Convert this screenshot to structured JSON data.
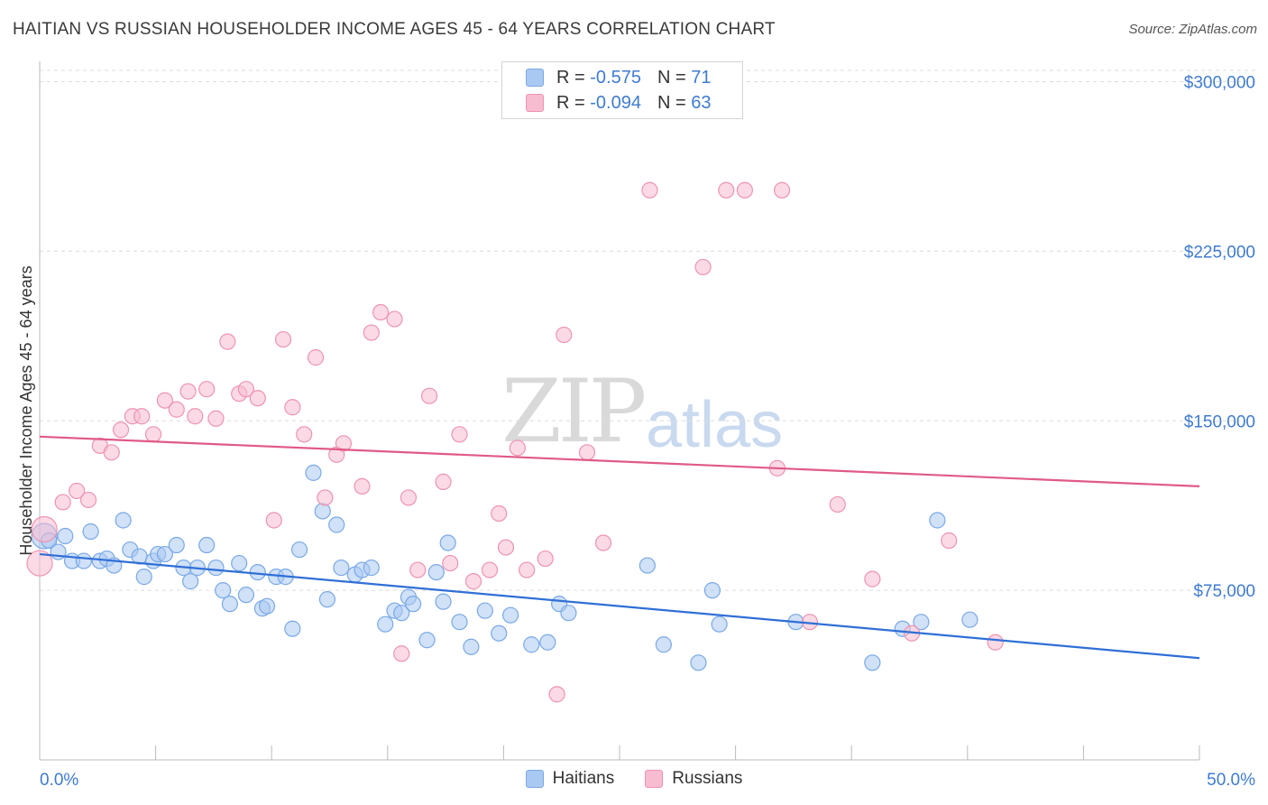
{
  "title": "HAITIAN VS RUSSIAN HOUSEHOLDER INCOME AGES 45 - 64 YEARS CORRELATION CHART",
  "source": "Source: ZipAtlas.com",
  "watermark": {
    "zip": "ZIP",
    "atlas": "atlas"
  },
  "legend_top": [
    {
      "r_label": "R =",
      "r_value": "-0.575",
      "n_label": "N =",
      "n_value": "71",
      "color": "#a9c9f2",
      "stroke": "#7aa9e6"
    },
    {
      "r_label": "R =",
      "r_value": "-0.094",
      "n_label": "N =",
      "n_value": "63",
      "color": "#f7bcd0",
      "stroke": "#ee93b1"
    }
  ],
  "legend_bottom": [
    {
      "label": "Haitians",
      "color": "#a9c9f2",
      "stroke": "#7aa9e6"
    },
    {
      "label": "Russians",
      "color": "#f7bcd0",
      "stroke": "#ee93b1"
    }
  ],
  "chart_data": {
    "type": "scatter",
    "title": "HAITIAN VS RUSSIAN HOUSEHOLDER INCOME AGES 45 - 64 YEARS CORRELATION CHART",
    "xlabel": "",
    "ylabel": "Householder Income Ages 45 - 64 years",
    "xlim": [
      0,
      50
    ],
    "ylim": [
      0,
      305000
    ],
    "x_tick_labels": [
      "0.0%",
      "50.0%"
    ],
    "y_ticks": [
      75000,
      150000,
      225000,
      300000
    ],
    "y_tick_labels": [
      "$75,000",
      "$150,000",
      "$225,000",
      "$300,000"
    ],
    "grid": "horizontal dashed",
    "legend_placement": "bottom",
    "series": [
      {
        "name": "Haitians",
        "color": "#7aa9e6",
        "fill": "#a9c9f2",
        "trend": {
          "x": [
            0,
            50
          ],
          "y": [
            91000,
            45000
          ],
          "color": "#2f6fd6"
        },
        "points": [
          [
            0.2,
            99000
          ],
          [
            0.4,
            97000
          ],
          [
            0.8,
            92000
          ],
          [
            1.1,
            99000
          ],
          [
            1.4,
            88000
          ],
          [
            1.9,
            88000
          ],
          [
            2.2,
            101000
          ],
          [
            2.6,
            88000
          ],
          [
            2.9,
            89000
          ],
          [
            3.2,
            86000
          ],
          [
            3.6,
            106000
          ],
          [
            3.9,
            93000
          ],
          [
            4.3,
            90000
          ],
          [
            4.5,
            81000
          ],
          [
            4.9,
            88000
          ],
          [
            5.1,
            91000
          ],
          [
            5.4,
            91000
          ],
          [
            5.9,
            95000
          ],
          [
            6.2,
            85000
          ],
          [
            6.5,
            79000
          ],
          [
            6.8,
            85000
          ],
          [
            7.2,
            95000
          ],
          [
            7.6,
            85000
          ],
          [
            7.9,
            75000
          ],
          [
            8.2,
            69000
          ],
          [
            8.6,
            87000
          ],
          [
            8.9,
            73000
          ],
          [
            9.4,
            83000
          ],
          [
            9.6,
            67000
          ],
          [
            9.8,
            68000
          ],
          [
            10.2,
            81000
          ],
          [
            10.6,
            81000
          ],
          [
            10.9,
            58000
          ],
          [
            11.2,
            93000
          ],
          [
            11.8,
            127000
          ],
          [
            12.2,
            110000
          ],
          [
            12.4,
            71000
          ],
          [
            12.8,
            104000
          ],
          [
            13.0,
            85000
          ],
          [
            13.6,
            82000
          ],
          [
            13.9,
            84000
          ],
          [
            14.3,
            85000
          ],
          [
            14.9,
            60000
          ],
          [
            15.3,
            66000
          ],
          [
            15.6,
            65000
          ],
          [
            15.9,
            72000
          ],
          [
            16.1,
            69000
          ],
          [
            16.7,
            53000
          ],
          [
            17.1,
            83000
          ],
          [
            17.4,
            70000
          ],
          [
            17.6,
            96000
          ],
          [
            18.1,
            61000
          ],
          [
            18.6,
            50000
          ],
          [
            19.2,
            66000
          ],
          [
            19.8,
            56000
          ],
          [
            20.3,
            64000
          ],
          [
            21.2,
            51000
          ],
          [
            21.9,
            52000
          ],
          [
            22.4,
            69000
          ],
          [
            22.8,
            65000
          ],
          [
            26.2,
            86000
          ],
          [
            26.9,
            51000
          ],
          [
            28.4,
            43000
          ],
          [
            29.0,
            75000
          ],
          [
            29.3,
            60000
          ],
          [
            32.6,
            61000
          ],
          [
            35.9,
            43000
          ],
          [
            37.2,
            58000
          ],
          [
            38.0,
            61000
          ],
          [
            38.7,
            106000
          ],
          [
            40.1,
            62000
          ]
        ]
      },
      {
        "name": "Russians",
        "color": "#ee93b1",
        "fill": "#f7bcd0",
        "trend": {
          "x": [
            0,
            50
          ],
          "y": [
            143000,
            121000
          ],
          "color": "#e05a87"
        },
        "points": [
          [
            0.2,
            102000
          ],
          [
            1.0,
            114000
          ],
          [
            1.6,
            119000
          ],
          [
            2.1,
            115000
          ],
          [
            2.6,
            139000
          ],
          [
            3.1,
            136000
          ],
          [
            3.5,
            146000
          ],
          [
            4.0,
            152000
          ],
          [
            4.4,
            152000
          ],
          [
            4.9,
            144000
          ],
          [
            5.4,
            159000
          ],
          [
            5.9,
            155000
          ],
          [
            6.4,
            163000
          ],
          [
            6.7,
            152000
          ],
          [
            7.2,
            164000
          ],
          [
            7.6,
            151000
          ],
          [
            8.1,
            185000
          ],
          [
            8.6,
            162000
          ],
          [
            8.9,
            164000
          ],
          [
            9.4,
            160000
          ],
          [
            10.1,
            106000
          ],
          [
            10.5,
            186000
          ],
          [
            10.9,
            156000
          ],
          [
            11.4,
            144000
          ],
          [
            11.9,
            178000
          ],
          [
            12.3,
            116000
          ],
          [
            12.8,
            135000
          ],
          [
            13.1,
            140000
          ],
          [
            13.9,
            121000
          ],
          [
            14.3,
            189000
          ],
          [
            14.7,
            198000
          ],
          [
            15.3,
            195000
          ],
          [
            15.6,
            47000
          ],
          [
            15.9,
            116000
          ],
          [
            16.3,
            84000
          ],
          [
            16.8,
            161000
          ],
          [
            17.4,
            123000
          ],
          [
            17.7,
            87000
          ],
          [
            18.1,
            144000
          ],
          [
            18.7,
            79000
          ],
          [
            19.4,
            84000
          ],
          [
            19.8,
            109000
          ],
          [
            20.1,
            94000
          ],
          [
            20.6,
            138000
          ],
          [
            21.0,
            84000
          ],
          [
            21.8,
            89000
          ],
          [
            22.3,
            29000
          ],
          [
            22.6,
            188000
          ],
          [
            23.6,
            136000
          ],
          [
            24.3,
            96000
          ],
          [
            26.3,
            252000
          ],
          [
            28.6,
            218000
          ],
          [
            29.6,
            252000
          ],
          [
            30.4,
            252000
          ],
          [
            31.8,
            129000
          ],
          [
            32.0,
            252000
          ],
          [
            33.2,
            61000
          ],
          [
            34.4,
            113000
          ],
          [
            35.9,
            80000
          ],
          [
            37.6,
            56000
          ],
          [
            39.2,
            97000
          ],
          [
            41.2,
            52000
          ],
          [
            0.0,
            87000
          ]
        ]
      }
    ]
  }
}
